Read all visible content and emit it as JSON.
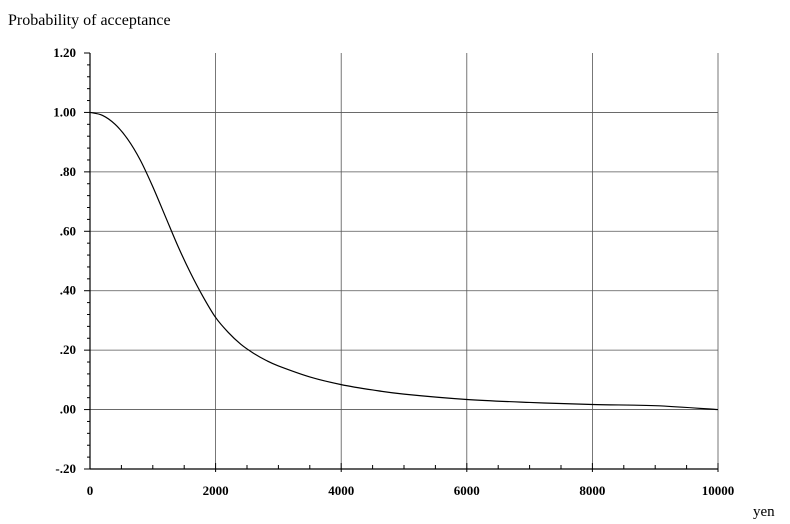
{
  "chart_data": {
    "type": "line",
    "title": "",
    "ylabel": "Probability of acceptance",
    "xlabel": "yen",
    "xlim": [
      0,
      10000
    ],
    "ylim": [
      -0.2,
      1.2
    ],
    "grid": true,
    "x_ticks": [
      {
        "value": 0,
        "label": "0"
      },
      {
        "value": 2000,
        "label": "2000"
      },
      {
        "value": 4000,
        "label": "4000"
      },
      {
        "value": 6000,
        "label": "6000"
      },
      {
        "value": 8000,
        "label": "8000"
      },
      {
        "value": 10000,
        "label": "10000"
      }
    ],
    "y_ticks": [
      {
        "value": 1.2,
        "label": "1.20"
      },
      {
        "value": 1.0,
        "label": "1.00"
      },
      {
        "value": 0.8,
        "label": ".80"
      },
      {
        "value": 0.6,
        "label": ".60"
      },
      {
        "value": 0.4,
        "label": ".40"
      },
      {
        "value": 0.2,
        "label": ".20"
      },
      {
        "value": 0.0,
        "label": ".00"
      },
      {
        "value": -0.2,
        "label": "-.20"
      }
    ],
    "series": [
      {
        "x": [
          0,
          200,
          400,
          600,
          800,
          1000,
          1200,
          1400,
          1600,
          1800,
          2000,
          2200,
          2400,
          2600,
          2800,
          3000,
          3500,
          4000,
          4500,
          5000,
          6000,
          7000,
          8000,
          9000,
          10000
        ],
        "y": [
          1.0,
          0.99,
          0.96,
          0.91,
          0.84,
          0.75,
          0.65,
          0.55,
          0.46,
          0.38,
          0.31,
          0.26,
          0.22,
          0.19,
          0.166,
          0.147,
          0.11,
          0.084,
          0.066,
          0.052,
          0.034,
          0.024,
          0.017,
          0.013,
          0.0
        ]
      }
    ]
  }
}
